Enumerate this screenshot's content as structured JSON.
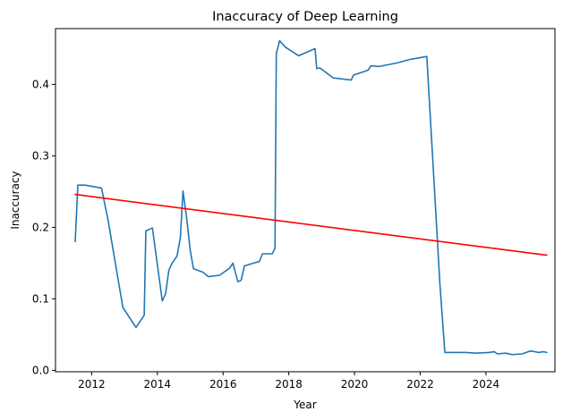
{
  "chart_data": {
    "type": "line",
    "title": "Inaccuracy of Deep Learning",
    "xlabel": "Year",
    "ylabel": "Inaccuracy",
    "xlim": [
      2010.9,
      2026.1
    ],
    "ylim": [
      -0.002,
      0.478
    ],
    "x_ticks": [
      2012,
      2014,
      2016,
      2018,
      2020,
      2022,
      2024
    ],
    "x_tick_labels": [
      "2012",
      "2014",
      "2016",
      "2018",
      "2020",
      "2022",
      "2024"
    ],
    "y_ticks": [
      0.0,
      0.1,
      0.2,
      0.3,
      0.4
    ],
    "y_tick_labels": [
      "0.0",
      "0.1",
      "0.2",
      "0.3",
      "0.4"
    ],
    "grid": false,
    "series": [
      {
        "color": "#1f77b4",
        "points": [
          [
            2011.5,
            0.18
          ],
          [
            2011.58,
            0.259
          ],
          [
            2011.8,
            0.259
          ],
          [
            2012.3,
            0.255
          ],
          [
            2012.5,
            0.21
          ],
          [
            2012.95,
            0.088
          ],
          [
            2013.35,
            0.06
          ],
          [
            2013.6,
            0.077
          ],
          [
            2013.65,
            0.195
          ],
          [
            2013.85,
            0.199
          ],
          [
            2014.15,
            0.097
          ],
          [
            2014.25,
            0.107
          ],
          [
            2014.35,
            0.14
          ],
          [
            2014.45,
            0.15
          ],
          [
            2014.6,
            0.16
          ],
          [
            2014.7,
            0.186
          ],
          [
            2014.78,
            0.251
          ],
          [
            2014.9,
            0.21
          ],
          [
            2015.0,
            0.168
          ],
          [
            2015.1,
            0.142
          ],
          [
            2015.4,
            0.137
          ],
          [
            2015.55,
            0.131
          ],
          [
            2015.9,
            0.133
          ],
          [
            2016.2,
            0.143
          ],
          [
            2016.3,
            0.15
          ],
          [
            2016.45,
            0.124
          ],
          [
            2016.55,
            0.126
          ],
          [
            2016.65,
            0.146
          ],
          [
            2017.0,
            0.151
          ],
          [
            2017.1,
            0.152
          ],
          [
            2017.2,
            0.163
          ],
          [
            2017.5,
            0.163
          ],
          [
            2017.58,
            0.171
          ],
          [
            2017.62,
            0.443
          ],
          [
            2017.72,
            0.461
          ],
          [
            2017.9,
            0.452
          ],
          [
            2018.3,
            0.44
          ],
          [
            2018.8,
            0.45
          ],
          [
            2018.85,
            0.422
          ],
          [
            2018.95,
            0.423
          ],
          [
            2019.35,
            0.409
          ],
          [
            2019.9,
            0.406
          ],
          [
            2019.97,
            0.413
          ],
          [
            2020.3,
            0.418
          ],
          [
            2020.42,
            0.42
          ],
          [
            2020.5,
            0.426
          ],
          [
            2020.75,
            0.425
          ],
          [
            2021.3,
            0.43
          ],
          [
            2021.7,
            0.435
          ],
          [
            2022.2,
            0.439
          ],
          [
            2022.3,
            0.36
          ],
          [
            2022.6,
            0.12
          ],
          [
            2022.75,
            0.025
          ],
          [
            2023.0,
            0.025
          ],
          [
            2023.4,
            0.025
          ],
          [
            2023.7,
            0.024
          ],
          [
            2024.1,
            0.025
          ],
          [
            2024.25,
            0.026
          ],
          [
            2024.35,
            0.023
          ],
          [
            2024.6,
            0.024
          ],
          [
            2024.8,
            0.022
          ],
          [
            2025.1,
            0.023
          ],
          [
            2025.35,
            0.027
          ],
          [
            2025.5,
            0.026
          ],
          [
            2025.6,
            0.025
          ],
          [
            2025.75,
            0.026
          ],
          [
            2025.85,
            0.025
          ]
        ]
      },
      {
        "color": "#ff0000",
        "points": [
          [
            2011.5,
            0.246
          ],
          [
            2025.85,
            0.161
          ]
        ]
      }
    ]
  }
}
